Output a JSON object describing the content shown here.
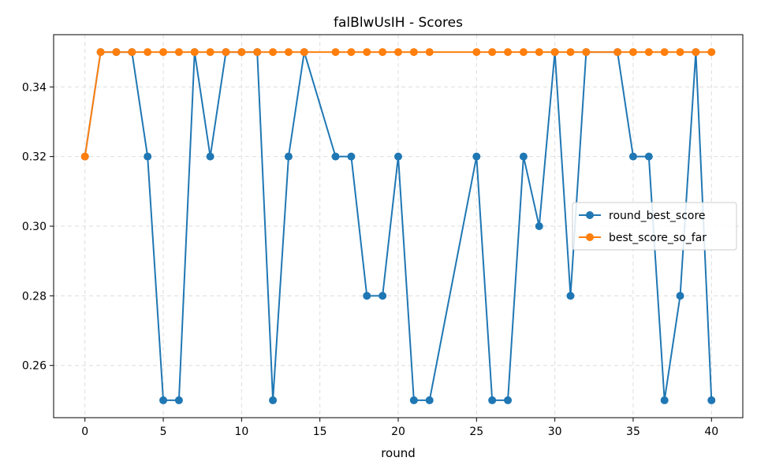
{
  "chart_data": {
    "type": "line",
    "title": "falBlwUsIH - Scores",
    "xlabel": "round",
    "ylabel": "",
    "xlim": [
      -2,
      42
    ],
    "ylim": [
      0.245,
      0.355
    ],
    "xticks": [
      0,
      5,
      10,
      15,
      20,
      25,
      30,
      35,
      40
    ],
    "yticks": [
      0.26,
      0.28,
      0.3,
      0.32,
      0.34
    ],
    "ytick_labels": [
      "0.26",
      "0.28",
      "0.30",
      "0.32",
      "0.34"
    ],
    "grid": true,
    "legend_position": "center-right",
    "series": [
      {
        "name": "round_best_score",
        "color": "#1f77b4",
        "x": [
          0,
          1,
          2,
          3,
          4,
          5,
          6,
          7,
          8,
          9,
          10,
          11,
          12,
          13,
          14,
          16,
          17,
          18,
          19,
          20,
          21,
          22,
          25,
          26,
          27,
          28,
          29,
          30,
          31,
          32,
          34,
          35,
          36,
          37,
          38,
          39,
          40
        ],
        "values": [
          0.32,
          0.35,
          0.35,
          0.35,
          0.32,
          0.25,
          0.25,
          0.35,
          0.32,
          0.35,
          0.35,
          0.35,
          0.25,
          0.32,
          0.35,
          0.32,
          0.32,
          0.28,
          0.28,
          0.32,
          0.25,
          0.25,
          0.32,
          0.25,
          0.25,
          0.32,
          0.3,
          0.35,
          0.28,
          0.35,
          0.35,
          0.32,
          0.32,
          0.25,
          0.28,
          0.35,
          0.25
        ]
      },
      {
        "name": "best_score_so_far",
        "color": "#ff7f0e",
        "x": [
          0,
          1,
          2,
          3,
          4,
          5,
          6,
          7,
          8,
          9,
          10,
          11,
          12,
          13,
          14,
          16,
          17,
          18,
          19,
          20,
          21,
          22,
          25,
          26,
          27,
          28,
          29,
          30,
          31,
          32,
          34,
          35,
          36,
          37,
          38,
          39,
          40
        ],
        "values": [
          0.32,
          0.35,
          0.35,
          0.35,
          0.35,
          0.35,
          0.35,
          0.35,
          0.35,
          0.35,
          0.35,
          0.35,
          0.35,
          0.35,
          0.35,
          0.35,
          0.35,
          0.35,
          0.35,
          0.35,
          0.35,
          0.35,
          0.35,
          0.35,
          0.35,
          0.35,
          0.35,
          0.35,
          0.35,
          0.35,
          0.35,
          0.35,
          0.35,
          0.35,
          0.35,
          0.35,
          0.35
        ]
      }
    ]
  }
}
